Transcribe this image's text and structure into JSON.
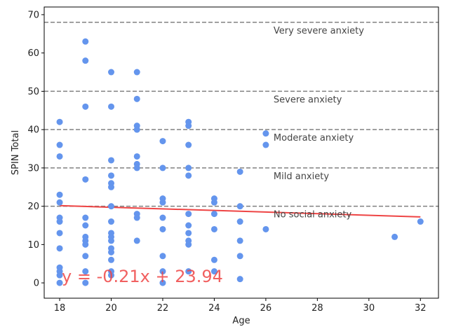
{
  "chart_data": {
    "type": "scatter",
    "xlabel": "Age",
    "ylabel": "SPIN Total",
    "xlim": [
      17.4,
      32.7
    ],
    "ylim": [
      -4,
      72
    ],
    "xticks": [
      18,
      20,
      22,
      24,
      26,
      28,
      30,
      32
    ],
    "yticks": [
      0,
      10,
      20,
      30,
      40,
      50,
      60,
      70
    ],
    "grid": false,
    "point_color": "#6495ED",
    "points": [
      [
        18,
        42
      ],
      [
        18,
        36
      ],
      [
        18,
        33
      ],
      [
        18,
        23
      ],
      [
        18,
        21
      ],
      [
        18,
        17
      ],
      [
        18,
        16
      ],
      [
        18,
        13
      ],
      [
        18,
        9
      ],
      [
        18,
        4
      ],
      [
        18,
        3
      ],
      [
        18,
        2
      ],
      [
        18,
        0
      ],
      [
        19,
        63
      ],
      [
        19,
        58
      ],
      [
        19,
        46
      ],
      [
        19,
        27
      ],
      [
        19,
        17
      ],
      [
        19,
        15
      ],
      [
        19,
        12
      ],
      [
        19,
        11
      ],
      [
        19,
        10
      ],
      [
        19,
        7
      ],
      [
        19,
        3
      ],
      [
        19,
        0
      ],
      [
        20,
        55
      ],
      [
        20,
        46
      ],
      [
        20,
        32
      ],
      [
        20,
        28
      ],
      [
        20,
        26
      ],
      [
        20,
        25
      ],
      [
        20,
        20
      ],
      [
        20,
        16
      ],
      [
        20,
        13
      ],
      [
        20,
        12
      ],
      [
        20,
        11
      ],
      [
        20,
        9
      ],
      [
        20,
        8
      ],
      [
        20,
        6
      ],
      [
        20,
        3
      ],
      [
        20,
        2
      ],
      [
        21,
        55
      ],
      [
        21,
        48
      ],
      [
        21,
        41
      ],
      [
        21,
        40
      ],
      [
        21,
        33
      ],
      [
        21,
        31
      ],
      [
        21,
        30
      ],
      [
        21,
        18
      ],
      [
        21,
        17
      ],
      [
        21,
        11
      ],
      [
        22,
        37
      ],
      [
        22,
        30
      ],
      [
        22,
        22
      ],
      [
        22,
        21
      ],
      [
        22,
        17
      ],
      [
        22,
        14
      ],
      [
        22,
        7
      ],
      [
        22,
        3
      ],
      [
        22,
        0
      ],
      [
        23,
        42
      ],
      [
        23,
        41
      ],
      [
        23,
        36
      ],
      [
        23,
        30
      ],
      [
        23,
        28
      ],
      [
        23,
        18
      ],
      [
        23,
        15
      ],
      [
        23,
        13
      ],
      [
        23,
        11
      ],
      [
        23,
        10
      ],
      [
        23,
        3
      ],
      [
        24,
        22
      ],
      [
        24,
        21
      ],
      [
        24,
        18
      ],
      [
        24,
        14
      ],
      [
        24,
        6
      ],
      [
        24,
        3
      ],
      [
        25,
        29
      ],
      [
        25,
        20
      ],
      [
        25,
        16
      ],
      [
        25,
        11
      ],
      [
        25,
        7
      ],
      [
        25,
        1
      ],
      [
        26,
        39
      ],
      [
        26,
        36
      ],
      [
        26,
        14
      ],
      [
        31,
        12
      ],
      [
        32,
        16
      ]
    ],
    "thresholds": [
      {
        "y": 20,
        "label": "No social anxiety"
      },
      {
        "y": 30,
        "label": "Mild anxiety"
      },
      {
        "y": 40,
        "label": "Moderate anxiety"
      },
      {
        "y": 50,
        "label": "Severe anxiety"
      },
      {
        "y": 68,
        "label": "Very severe anxiety"
      }
    ],
    "threshold_color": "#808080",
    "trendline": {
      "slope": -0.21,
      "intercept": 23.94,
      "x_range": [
        18,
        32
      ],
      "color": "#ee4444"
    },
    "annotation": "y = -0.21x + 23.94"
  }
}
